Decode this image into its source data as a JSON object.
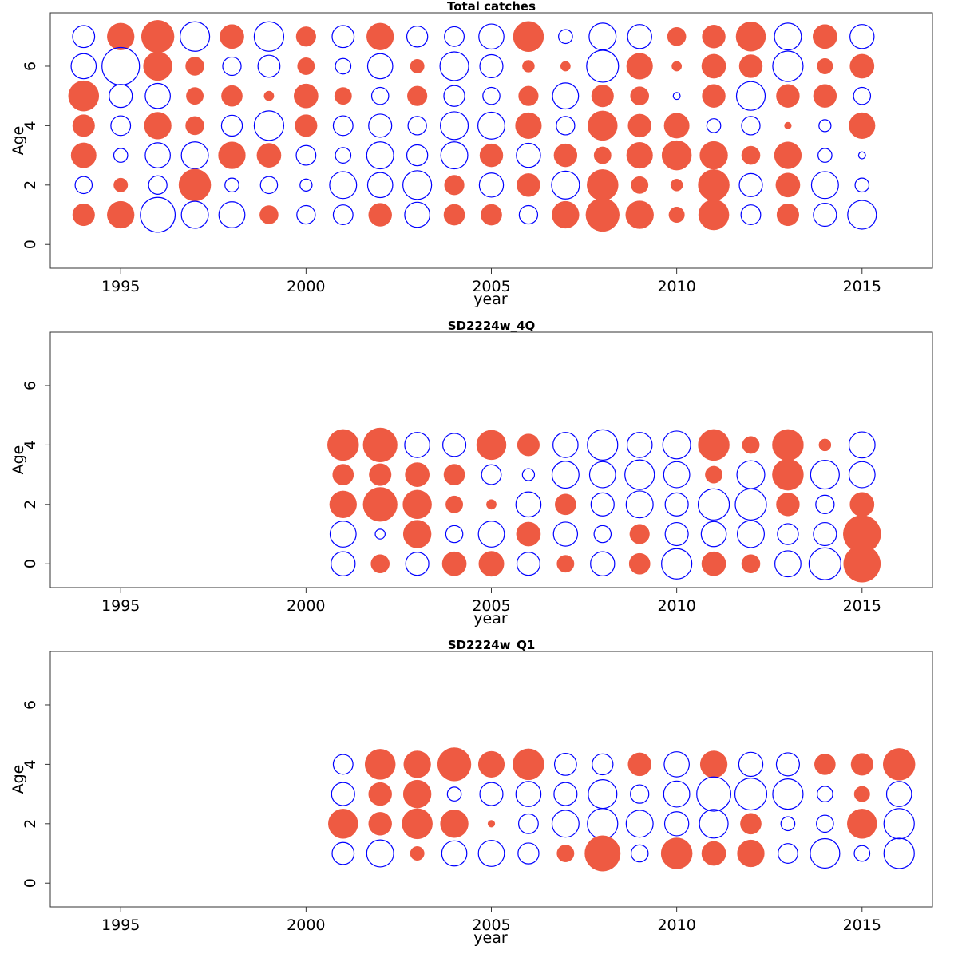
{
  "colors": {
    "positive": "#EE5A42",
    "negative": "#0000FF"
  },
  "chart_data": [
    {
      "type": "scatter",
      "title": "Total catches",
      "xlabel": "year",
      "ylabel": "Age",
      "xlim": [
        1993.1,
        2016.9
      ],
      "ylim": [
        -0.8,
        7.8
      ],
      "x_ticks": [
        1995,
        2000,
        2005,
        2010,
        2015
      ],
      "y_ticks": [
        0,
        2,
        4,
        6
      ],
      "grid": false,
      "rows": [
        {
          "age": 7,
          "years": [
            1994,
            1995,
            1996,
            1997,
            1998,
            1999,
            2000,
            2001,
            2002,
            2003,
            2004,
            2005,
            2006,
            2007,
            2008,
            2009,
            2010,
            2011,
            2012,
            2013,
            2014,
            2015
          ],
          "values": [
            -0.5,
            0.75,
            1.1,
            -0.9,
            0.6,
            -0.9,
            0.4,
            -0.5,
            0.75,
            -0.45,
            -0.4,
            -0.65,
            0.95,
            -0.2,
            -0.75,
            -0.6,
            0.35,
            0.55,
            0.9,
            -0.75,
            0.6,
            -0.6
          ]
        },
        {
          "age": 6,
          "years": [
            1994,
            1995,
            1996,
            1997,
            1998,
            1999,
            2000,
            2001,
            2002,
            2003,
            2004,
            2005,
            2006,
            2007,
            2008,
            2009,
            2010,
            2011,
            2012,
            2013,
            2014,
            2015
          ],
          "values": [
            -0.65,
            -1.45,
            0.85,
            0.35,
            -0.35,
            -0.5,
            0.3,
            -0.25,
            -0.65,
            0.2,
            -0.85,
            -0.55,
            0.15,
            0.1,
            -1.05,
            0.7,
            0.1,
            0.6,
            0.55,
            -0.95,
            0.25,
            0.6
          ]
        },
        {
          "age": 5,
          "years": [
            1994,
            1995,
            1996,
            1997,
            1998,
            1999,
            2000,
            2001,
            2002,
            2003,
            2004,
            2005,
            2006,
            2007,
            2008,
            2009,
            2010,
            2011,
            2012,
            2013,
            2014,
            2015
          ],
          "values": [
            0.95,
            -0.55,
            -0.65,
            0.3,
            0.45,
            0.1,
            0.6,
            0.3,
            -0.3,
            0.4,
            -0.45,
            -0.3,
            0.4,
            -0.7,
            0.5,
            0.35,
            -0.05,
            0.55,
            -0.85,
            0.55,
            0.55,
            -0.3
          ]
        },
        {
          "age": 4,
          "years": [
            1994,
            1995,
            1996,
            1997,
            1998,
            1999,
            2000,
            2001,
            2002,
            2003,
            2004,
            2005,
            2006,
            2007,
            2008,
            2009,
            2010,
            2011,
            2012,
            2013,
            2014,
            2015
          ],
          "values": [
            0.5,
            -0.4,
            0.75,
            0.35,
            -0.45,
            -0.9,
            0.5,
            -0.4,
            -0.55,
            -0.35,
            -0.8,
            -0.75,
            0.7,
            -0.35,
            0.9,
            0.55,
            0.65,
            -0.2,
            -0.35,
            0.05,
            -0.15,
            0.7
          ]
        },
        {
          "age": 3,
          "years": [
            1994,
            1995,
            1996,
            1997,
            1998,
            1999,
            2000,
            2001,
            2002,
            2003,
            2004,
            2005,
            2006,
            2007,
            2008,
            2009,
            2010,
            2011,
            2012,
            2013,
            2014,
            2015
          ],
          "values": [
            0.65,
            -0.2,
            -0.65,
            -0.75,
            0.75,
            0.6,
            -0.4,
            -0.25,
            -0.75,
            -0.45,
            -0.75,
            0.55,
            -0.6,
            0.55,
            0.3,
            0.7,
            0.9,
            0.8,
            0.35,
            0.75,
            -0.2,
            -0.05
          ]
        },
        {
          "age": 2,
          "years": [
            1994,
            1995,
            1996,
            1997,
            1998,
            1999,
            2000,
            2001,
            2002,
            2003,
            2004,
            2005,
            2006,
            2007,
            2008,
            2009,
            2010,
            2011,
            2012,
            2013,
            2014,
            2015
          ],
          "values": [
            -0.3,
            0.2,
            -0.35,
            1.05,
            -0.2,
            -0.3,
            -0.15,
            -0.75,
            -0.65,
            -0.85,
            0.4,
            -0.6,
            0.55,
            -0.8,
            1.0,
            0.3,
            0.15,
            1.0,
            -0.55,
            0.6,
            -0.75,
            -0.2
          ]
        },
        {
          "age": 1,
          "years": [
            1994,
            1995,
            1996,
            1997,
            1998,
            1999,
            2000,
            2001,
            2002,
            2003,
            2004,
            2005,
            2006,
            2007,
            2008,
            2009,
            2010,
            2011,
            2012,
            2013,
            2014,
            2015
          ],
          "values": [
            0.5,
            0.75,
            -1.25,
            -0.75,
            -0.7,
            0.35,
            -0.35,
            -0.4,
            0.55,
            -0.65,
            0.45,
            0.45,
            -0.35,
            0.75,
            1.15,
            0.8,
            0.25,
            0.95,
            -0.4,
            0.5,
            -0.55,
            -0.85
          ]
        }
      ]
    },
    {
      "type": "scatter",
      "title": "SD2224w_4Q",
      "xlabel": "year",
      "ylabel": "Age",
      "xlim": [
        1993.1,
        2016.9
      ],
      "ylim": [
        -0.8,
        7.8
      ],
      "x_ticks": [
        1995,
        2000,
        2005,
        2010,
        2015
      ],
      "y_ticks": [
        0,
        2,
        4,
        6
      ],
      "grid": false,
      "rows": [
        {
          "age": 4,
          "years": [
            2001,
            2002,
            2003,
            2004,
            2005,
            2006,
            2007,
            2008,
            2009,
            2010,
            2011,
            2012,
            2013,
            2014,
            2015
          ],
          "values": [
            1.0,
            1.2,
            -0.65,
            -0.55,
            0.9,
            0.5,
            -0.65,
            -0.95,
            -0.65,
            -0.8,
            1.0,
            0.3,
            1.0,
            0.15,
            -0.7
          ]
        },
        {
          "age": 3,
          "years": [
            2001,
            2002,
            2003,
            2004,
            2005,
            2006,
            2007,
            2008,
            2009,
            2010,
            2011,
            2012,
            2013,
            2014,
            2015
          ],
          "values": [
            0.45,
            0.5,
            0.6,
            0.45,
            -0.4,
            -0.15,
            -0.75,
            -0.7,
            -0.9,
            -0.7,
            0.3,
            -0.8,
            1.0,
            -0.85,
            -0.7
          ]
        },
        {
          "age": 2,
          "years": [
            2001,
            2002,
            2003,
            2004,
            2005,
            2006,
            2007,
            2008,
            2009,
            2010,
            2011,
            2012,
            2013,
            2014,
            2015
          ],
          "values": [
            0.75,
            1.2,
            0.85,
            0.3,
            0.1,
            -0.65,
            0.45,
            -0.55,
            -0.75,
            -0.55,
            -1.0,
            -1.0,
            0.55,
            -0.35,
            0.6
          ]
        },
        {
          "age": 1,
          "years": [
            2001,
            2002,
            2003,
            2004,
            2005,
            2006,
            2007,
            2008,
            2009,
            2010,
            2011,
            2012,
            2013,
            2014,
            2015
          ],
          "values": [
            -0.7,
            -0.1,
            0.8,
            -0.3,
            -0.7,
            0.6,
            -0.6,
            -0.3,
            0.4,
            -0.55,
            -0.65,
            -0.75,
            -0.45,
            -0.55,
            1.45
          ]
        },
        {
          "age": 0,
          "years": [
            2001,
            2002,
            2003,
            2004,
            2005,
            2006,
            2007,
            2008,
            2009,
            2010,
            2011,
            2012,
            2013,
            2014,
            2015
          ],
          "values": [
            -0.6,
            0.35,
            -0.55,
            0.6,
            0.65,
            -0.55,
            0.3,
            -0.6,
            0.45,
            -0.95,
            0.6,
            0.35,
            -0.7,
            -1.05,
            1.4
          ]
        }
      ]
    },
    {
      "type": "scatter",
      "title": "SD2224w_Q1",
      "xlabel": "year",
      "ylabel": "Age",
      "xlim": [
        1993.1,
        2016.9
      ],
      "ylim": [
        -0.8,
        7.8
      ],
      "x_ticks": [
        1995,
        2000,
        2005,
        2010,
        2015
      ],
      "y_ticks": [
        0,
        2,
        4,
        6
      ],
      "grid": false,
      "rows": [
        {
          "age": 4,
          "years": [
            2001,
            2002,
            2003,
            2004,
            2005,
            2006,
            2007,
            2008,
            2009,
            2010,
            2011,
            2012,
            2013,
            2014,
            2015,
            2016
          ],
          "values": [
            -0.4,
            0.95,
            0.75,
            1.15,
            0.7,
            1.0,
            -0.5,
            -0.45,
            0.55,
            -0.65,
            0.75,
            -0.6,
            -0.55,
            0.45,
            0.5,
            1.05
          ]
        },
        {
          "age": 3,
          "years": [
            2001,
            2002,
            2003,
            2004,
            2005,
            2006,
            2007,
            2008,
            2009,
            2010,
            2011,
            2012,
            2013,
            2014,
            2015,
            2016
          ],
          "values": [
            -0.55,
            0.55,
            0.8,
            -0.2,
            -0.55,
            -0.65,
            -0.55,
            -0.85,
            -0.35,
            -0.7,
            -1.2,
            -1.05,
            -0.95,
            -0.25,
            0.25,
            -0.65
          ]
        },
        {
          "age": 2,
          "years": [
            2001,
            2002,
            2003,
            2004,
            2005,
            2006,
            2007,
            2008,
            2009,
            2010,
            2011,
            2012,
            2013,
            2014,
            2015,
            2016
          ],
          "values": [
            0.9,
            0.55,
            0.95,
            0.8,
            0.05,
            -0.4,
            -0.75,
            -0.95,
            -0.75,
            -0.6,
            -0.85,
            0.45,
            -0.2,
            -0.3,
            0.9,
            -0.95
          ]
        },
        {
          "age": 1,
          "years": [
            2001,
            2002,
            2003,
            2004,
            2005,
            2006,
            2007,
            2008,
            2009,
            2010,
            2011,
            2012,
            2013,
            2014,
            2015,
            2016
          ],
          "values": [
            -0.5,
            -0.75,
            0.2,
            -0.65,
            -0.7,
            -0.45,
            0.3,
            1.3,
            -0.3,
            1.0,
            0.6,
            0.75,
            -0.4,
            -0.9,
            -0.25,
            -0.95
          ]
        }
      ]
    }
  ]
}
